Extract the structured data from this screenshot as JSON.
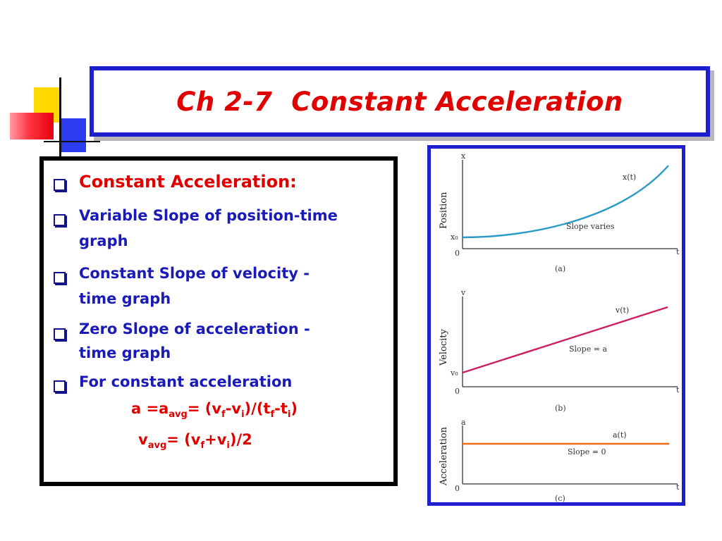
{
  "title": "Ch 2-7  Constant Acceleration",
  "bullets": [
    {
      "lines": [
        "Constant Acceleration:"
      ]
    },
    {
      "lines": [
        "Variable Slope of position-time",
        "graph"
      ]
    },
    {
      "lines": [
        "Constant Slope of velocity -",
        "time graph"
      ]
    },
    {
      "lines": [
        "Zero Slope of acceleration -",
        "time graph"
      ]
    },
    {
      "lines": [
        "For constant acceleration"
      ]
    }
  ],
  "formulas": {
    "a": {
      "lhs": "a =a",
      "avg": "avg",
      "eq": "= (v",
      "f1": "f",
      "mid1": "-v",
      "i1": "i",
      "mid2": ")/(t",
      "f2": "f",
      "mid3": "-t",
      "i2": "i",
      "end": ")"
    },
    "v": {
      "lhs": "v",
      "avg": "avg",
      "eq": "= (v",
      "f": "f",
      "mid": "+v",
      "i": "i",
      "end": ")/2"
    }
  },
  "graphs": {
    "position": {
      "ylabel": "Position",
      "yaxis": "x",
      "xaxis": "t",
      "origin": "0",
      "intercept": "x₀",
      "curve_label": "x(t)",
      "slope_label": "Slope varies",
      "caption": "(a)",
      "color": "#2a9bc4"
    },
    "velocity": {
      "ylabel": "Velocity",
      "yaxis": "v",
      "xaxis": "t",
      "origin": "0",
      "intercept": "v₀",
      "curve_label": "v(t)",
      "slope_label": "Slope = a",
      "caption": "(b)",
      "color": "#cc1f5f"
    },
    "acceleration": {
      "ylabel": "Acceleration",
      "yaxis": "a",
      "xaxis": "t",
      "origin": "0",
      "curve_label": "a(t)",
      "slope_label": "Slope = 0",
      "caption": "(c)",
      "color": "#ef6a1c"
    }
  }
}
